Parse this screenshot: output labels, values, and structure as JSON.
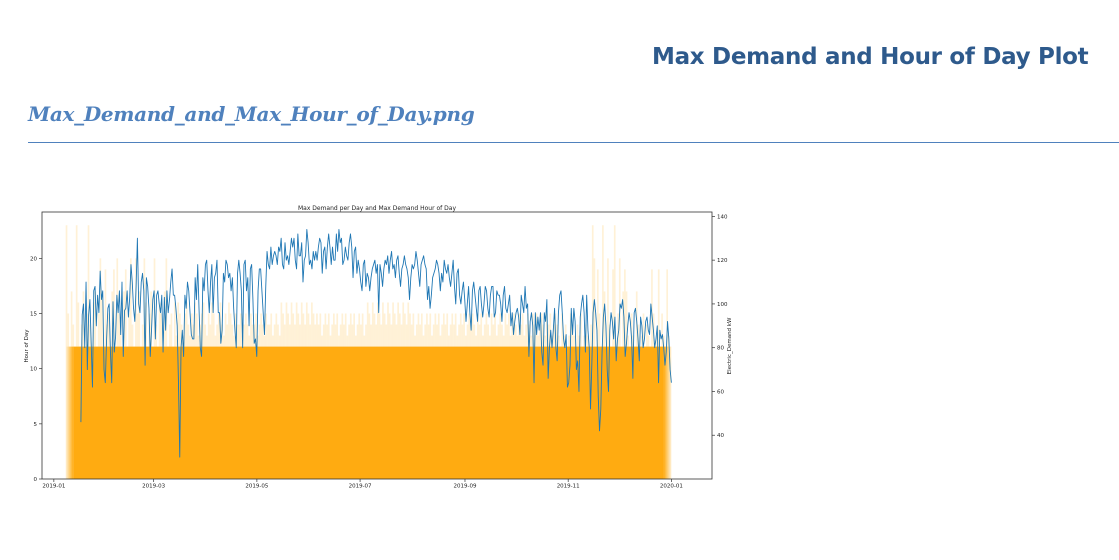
{
  "heading": "Max Demand and Hour of Day Plot",
  "figure_caption": "Max_Demand_and_Max_Hour_of_Day.png",
  "chart_data": {
    "type": "bar+line",
    "title": "Max Demand per Day and Max Demand Hour of Day",
    "ylabel_left": "Hour of Day",
    "ylabel_right": "Electric_Demand kW",
    "xlabel": "",
    "grid": false,
    "x_ticks": [
      "2019-01",
      "2019-03",
      "2019-05",
      "2019-07",
      "2019-09",
      "2019-11",
      "2020-01"
    ],
    "x_tick_dates": [
      "2019-01-01",
      "2019-03-01",
      "2019-05-01",
      "2019-07-01",
      "2019-09-01",
      "2019-11-01",
      "2020-01-01"
    ],
    "xlim": [
      "2018-12-25",
      "2020-01-25"
    ],
    "y_left_ticks": [
      0,
      5,
      10,
      15,
      20
    ],
    "ylim_left": [
      0,
      24.2
    ],
    "y_right_ticks": [
      40,
      60,
      80,
      100,
      120,
      140
    ],
    "ylim_right": [
      20,
      142
    ],
    "bar_color": "#ffa500",
    "line_color": "#1f77b4",
    "bars": {
      "name": "Max Demand Hour of Day",
      "segments": [
        {
          "start": "2019-01-08",
          "end": "2019-01-28",
          "values": [
            23,
            15,
            12,
            17,
            14,
            12,
            23,
            16,
            12,
            14,
            17,
            12,
            15,
            23,
            14,
            12,
            16,
            17,
            12,
            15
          ]
        },
        {
          "start": "2019-01-28",
          "end": "2019-02-18",
          "values": [
            20,
            17,
            12,
            19,
            14,
            15,
            12,
            17,
            19,
            12,
            20,
            15,
            14,
            12,
            17,
            19,
            12,
            15,
            20,
            14,
            12
          ]
        },
        {
          "start": "2019-02-18",
          "end": "2019-03-15",
          "values": [
            20,
            15,
            17,
            12,
            14,
            20,
            16,
            12,
            15,
            17,
            12,
            20,
            14,
            12,
            16,
            15,
            12,
            17,
            20,
            12,
            14,
            15,
            12,
            16,
            13
          ]
        },
        {
          "start": "2019-03-15",
          "end": "2019-04-15",
          "values": [
            16,
            15,
            14,
            13,
            15,
            16,
            14,
            13,
            15,
            14,
            16,
            15,
            13,
            14,
            15,
            16,
            14,
            13,
            15,
            14,
            16,
            15,
            13,
            14,
            15,
            16,
            14,
            13,
            15,
            14,
            16
          ]
        },
        {
          "start": "2019-04-15",
          "end": "2019-05-15",
          "values": [
            15,
            14,
            13,
            15,
            14,
            14,
            15,
            13,
            14,
            15,
            14,
            13,
            15,
            14,
            14,
            15,
            13,
            14,
            15,
            14,
            13,
            15,
            14,
            14,
            15,
            13,
            14,
            15,
            14,
            13
          ]
        },
        {
          "start": "2019-05-15",
          "end": "2019-06-05",
          "values": [
            16,
            15,
            14,
            16,
            15,
            14,
            16,
            15,
            14,
            16,
            15,
            14,
            16,
            15,
            14,
            16,
            15,
            14,
            16,
            15,
            14
          ]
        },
        {
          "start": "2019-06-05",
          "end": "2019-07-05",
          "values": [
            15,
            14,
            15,
            13,
            14,
            15,
            14,
            15,
            13,
            14,
            15,
            14,
            15,
            13,
            14,
            15,
            14,
            15,
            13,
            14,
            15,
            14,
            15,
            13,
            14,
            15,
            14,
            15,
            13,
            14
          ]
        },
        {
          "start": "2019-07-05",
          "end": "2019-07-30",
          "values": [
            16,
            15,
            14,
            16,
            15,
            14,
            16,
            15,
            14,
            16,
            15,
            14,
            16,
            15,
            14,
            16,
            15,
            14,
            16,
            15,
            14,
            16,
            15,
            14,
            16
          ]
        },
        {
          "start": "2019-07-30",
          "end": "2019-09-05",
          "values": [
            15,
            14,
            15,
            13,
            14,
            15,
            14,
            15,
            13,
            14,
            15,
            14,
            15,
            13,
            14,
            15,
            14,
            15,
            13,
            14,
            15,
            14,
            15,
            13,
            14,
            15,
            14,
            15,
            13,
            14,
            15,
            14,
            15,
            13,
            14,
            15,
            14
          ]
        },
        {
          "start": "2019-09-05",
          "end": "2019-10-25",
          "values": [
            15,
            14,
            13,
            15,
            14,
            15,
            13,
            14,
            15,
            14,
            13,
            15,
            14,
            15,
            13,
            14,
            15,
            14,
            13,
            15,
            14,
            15,
            13,
            14,
            15,
            14,
            13,
            15,
            14,
            15,
            13,
            14,
            15,
            14,
            13,
            15,
            14,
            15,
            13,
            14,
            15,
            14,
            13,
            15,
            14,
            15,
            13,
            14,
            15
          ]
        },
        {
          "start": "2019-10-25",
          "end": "2019-11-15",
          "values": [
            14,
            13,
            12,
            15,
            13,
            14,
            12,
            13,
            15,
            14,
            13,
            12,
            14,
            13,
            15,
            12,
            13,
            14,
            13,
            12,
            14
          ]
        },
        {
          "start": "2019-11-15",
          "end": "2019-12-05",
          "values": [
            23,
            20,
            12,
            19,
            15,
            12,
            23,
            17,
            12,
            20,
            14,
            12,
            19,
            23,
            12,
            15,
            20,
            12,
            17,
            19
          ]
        },
        {
          "start": "2019-12-05",
          "end": "2019-12-20",
          "values": [
            17,
            13,
            12,
            15,
            13,
            12,
            17,
            14,
            12,
            13,
            15,
            12,
            14,
            13,
            12
          ]
        },
        {
          "start": "2019-12-20",
          "end": "2020-01-01",
          "values": [
            19,
            15,
            12,
            13,
            19,
            12,
            15,
            13,
            12,
            19,
            13,
            12
          ]
        }
      ]
    },
    "line": {
      "name": "Electric_Demand kW",
      "x_start": "2019-01-17",
      "x_end": "2020-01-01",
      "values": [
        46,
        95,
        100,
        80,
        110,
        70,
        95,
        102,
        82,
        62,
        106,
        108,
        90,
        104,
        96,
        115,
        102,
        106,
        70,
        64,
        84,
        98,
        100,
        78,
        64,
        101,
        78,
        85,
        104,
        96,
        106,
        86,
        110,
        76,
        97,
        98,
        106,
        94,
        103,
        118,
        110,
        98,
        92,
        108,
        130,
        100,
        96,
        110,
        114,
        106,
        72,
        112,
        108,
        98,
        76,
        88,
        102,
        106,
        84,
        104,
        106,
        100,
        96,
        104,
        78,
        103,
        88,
        106,
        96,
        102,
        110,
        116,
        104,
        104,
        98,
        90,
        64,
        30,
        80,
        88,
        76,
        104,
        98,
        110,
        106,
        96,
        86,
        84,
        84,
        112,
        102,
        118,
        98,
        80,
        76,
        112,
        106,
        118,
        120,
        106,
        96,
        110,
        118,
        96,
        112,
        114,
        120,
        96,
        96,
        82,
        88,
        114,
        110,
        120,
        118,
        112,
        114,
        106,
        112,
        98,
        88,
        80,
        114,
        120,
        114,
        106,
        80,
        118,
        120,
        106,
        112,
        90,
        116,
        118,
        102,
        82,
        84,
        76,
        106,
        116,
        116,
        106,
        96,
        86,
        108,
        124,
        118,
        116,
        126,
        118,
        122,
        124,
        122,
        118,
        126,
        124,
        130,
        118,
        116,
        128,
        120,
        122,
        118,
        124,
        130,
        126,
        130,
        120,
        116,
        132,
        122,
        122,
        128,
        110,
        120,
        122,
        134,
        128,
        118,
        120,
        116,
        124,
        120,
        124,
        120,
        126,
        130,
        128,
        114,
        124,
        126,
        116,
        126,
        132,
        126,
        118,
        126,
        120,
        120,
        132,
        124,
        134,
        128,
        130,
        118,
        120,
        126,
        122,
        120,
        128,
        132,
        126,
        112,
        124,
        126,
        114,
        120,
        116,
        110,
        106,
        118,
        120,
        108,
        114,
        112,
        106,
        112,
        116,
        118,
        120,
        114,
        118,
        96,
        118,
        114,
        108,
        116,
        120,
        118,
        122,
        114,
        120,
        124,
        116,
        118,
        112,
        120,
        122,
        114,
        108,
        116,
        118,
        122,
        118,
        116,
        112,
        102,
        112,
        118,
        116,
        118,
        124,
        120,
        114,
        108,
        118,
        120,
        122,
        118,
        116,
        102,
        108,
        98,
        104,
        112,
        114,
        116,
        120,
        118,
        114,
        106,
        114,
        110,
        120,
        116,
        114,
        118,
        112,
        108,
        114,
        120,
        108,
        100,
        114,
        116,
        104,
        100,
        106,
        110,
        102,
        92,
        100,
        108,
        96,
        88,
        106,
        110,
        104,
        98,
        92,
        106,
        108,
        100,
        94,
        100,
        108,
        106,
        98,
        94,
        104,
        108,
        108,
        94,
        96,
        106,
        104,
        104,
        100,
        92,
        104,
        108,
        98,
        96,
        100,
        104,
        90,
        96,
        86,
        92,
        96,
        98,
        94,
        86,
        104,
        100,
        96,
        108,
        98,
        100,
        76,
        92,
        96,
        90,
        64,
        96,
        86,
        94,
        88,
        96,
        78,
        72,
        96,
        92,
        102,
        66,
        80,
        88,
        80,
        88,
        98,
        80,
        74,
        96,
        104,
        106,
        96,
        84,
        80,
        86,
        62,
        64,
        72,
        98,
        86,
        98,
        92,
        70,
        74,
        60,
        94,
        100,
        104,
        96,
        78,
        104,
        88,
        80,
        52,
        72,
        96,
        102,
        96,
        88,
        58,
        42,
        52,
        78,
        94,
        100,
        90,
        70,
        60,
        88,
        96,
        92,
        84,
        94,
        74,
        84,
        88,
        100,
        98,
        102,
        94,
        76,
        82,
        90,
        96,
        92,
        84,
        66,
        96,
        98,
        92,
        84,
        74,
        94,
        90,
        80,
        84,
        92,
        94,
        88,
        86,
        100,
        94,
        88,
        80,
        84,
        90,
        64,
        88,
        84,
        86,
        80,
        72,
        78,
        92,
        84,
        70,
        64
      ]
    }
  }
}
